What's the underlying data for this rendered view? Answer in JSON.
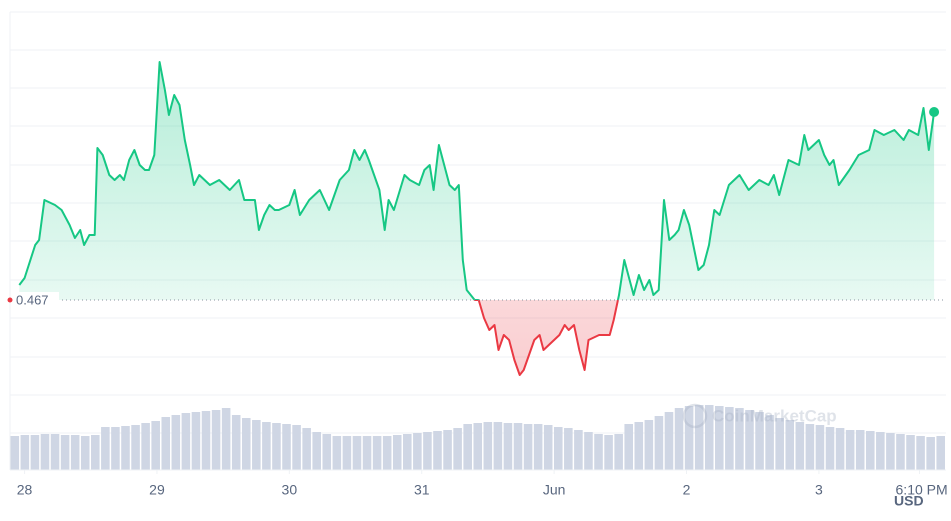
{
  "chart_data": {
    "type": "line",
    "xlim": [
      -0.11,
      6.96
    ],
    "ylim": [
      0.45,
      0.4958
    ],
    "yticks": [
      0.4537,
      0.4575,
      0.4613,
      0.4652,
      0.469,
      0.4729,
      0.4767,
      0.4805,
      0.4844,
      0.4882,
      0.492,
      0.4958
    ],
    "grid": true,
    "xticks": [
      {
        "value": 0,
        "label": "28"
      },
      {
        "value": 1,
        "label": "29"
      },
      {
        "value": 2,
        "label": "30"
      },
      {
        "value": 3,
        "label": "31"
      },
      {
        "value": 4,
        "label": "Jun"
      },
      {
        "value": 5,
        "label": "2"
      },
      {
        "value": 6,
        "label": "3"
      },
      {
        "value": 6.76,
        "label": "6:10 PM"
      }
    ],
    "currency": "USD",
    "baseline": 0.467,
    "up_color": "#16c784",
    "down_color": "#ea3943",
    "watermark": "CoinMarketCap",
    "series": [
      {
        "x": [
          -0.04,
          0,
          0.08,
          0.11,
          0.15,
          0.23,
          0.28,
          0.34,
          0.38,
          0.42,
          0.45,
          0.49,
          0.53,
          0.55,
          0.59,
          0.64,
          0.68,
          0.72,
          0.75,
          0.79,
          0.83,
          0.87,
          0.91,
          0.94,
          0.98,
          1.02,
          1.06,
          1.09,
          1.13,
          1.17,
          1.21,
          1.25,
          1.28,
          1.32,
          1.36,
          1.4,
          1.47,
          1.55,
          1.62,
          1.66,
          1.74,
          1.77,
          1.81,
          1.85,
          1.89,
          1.92,
          2.0,
          2.04,
          2.08,
          2.15,
          2.23,
          2.3,
          2.38,
          2.45,
          2.49,
          2.53,
          2.57,
          2.6,
          2.64,
          2.68,
          2.72,
          2.75,
          2.79,
          2.87,
          2.91,
          2.98,
          3.02,
          3.06,
          3.09,
          3.13,
          3.17,
          3.21,
          3.25,
          3.28,
          3.31,
          3.34,
          3.4,
          3.43,
          3.47,
          3.51,
          3.55,
          3.58,
          3.62,
          3.66,
          3.7,
          3.74,
          3.77,
          3.81,
          3.85,
          3.89,
          3.92,
          3.96,
          4.0,
          4.04,
          4.08,
          4.11,
          4.15,
          4.19,
          4.23,
          4.26,
          4.34,
          4.42,
          4.45,
          4.49,
          4.53,
          4.57,
          4.6,
          4.64,
          4.68,
          4.72,
          4.75,
          4.79,
          4.83,
          4.87,
          4.91,
          4.94,
          4.98,
          5.02,
          5.09,
          5.13,
          5.17,
          5.21,
          5.25,
          5.32,
          5.4,
          5.47,
          5.55,
          5.62,
          5.66,
          5.7,
          5.77,
          5.85,
          5.89,
          5.92,
          6.0,
          6.04,
          6.08,
          6.11,
          6.15,
          6.23,
          6.3,
          6.38,
          6.42,
          6.49,
          6.57,
          6.64,
          6.68,
          6.75,
          6.79,
          6.83,
          6.87
        ],
        "values": [
          0.4685,
          0.4692,
          0.4725,
          0.473,
          0.477,
          0.4765,
          0.476,
          0.4745,
          0.4732,
          0.474,
          0.4725,
          0.4735,
          0.4735,
          0.4822,
          0.4815,
          0.4795,
          0.479,
          0.4795,
          0.479,
          0.481,
          0.482,
          0.4805,
          0.48,
          0.48,
          0.4815,
          0.4908,
          0.488,
          0.4855,
          0.4875,
          0.4865,
          0.483,
          0.4805,
          0.4785,
          0.4795,
          0.479,
          0.4785,
          0.479,
          0.478,
          0.479,
          0.477,
          0.477,
          0.474,
          0.4755,
          0.4765,
          0.476,
          0.476,
          0.4765,
          0.478,
          0.4755,
          0.477,
          0.478,
          0.476,
          0.479,
          0.48,
          0.482,
          0.481,
          0.482,
          0.481,
          0.4795,
          0.478,
          0.474,
          0.477,
          0.476,
          0.4795,
          0.479,
          0.4785,
          0.48,
          0.4805,
          0.478,
          0.4825,
          0.4805,
          0.4785,
          0.478,
          0.4785,
          0.471,
          0.468,
          0.467,
          0.467,
          0.4652,
          0.464,
          0.4645,
          0.462,
          0.4635,
          0.463,
          0.461,
          0.4595,
          0.46,
          0.4615,
          0.463,
          0.4635,
          0.462,
          0.4625,
          0.463,
          0.4635,
          0.4645,
          0.464,
          0.4645,
          0.462,
          0.46,
          0.463,
          0.4635,
          0.4635,
          0.465,
          0.4675,
          0.471,
          0.469,
          0.4675,
          0.4695,
          0.468,
          0.469,
          0.4675,
          0.468,
          0.477,
          0.473,
          0.4735,
          0.474,
          0.476,
          0.4745,
          0.47,
          0.4705,
          0.4725,
          0.476,
          0.4755,
          0.4785,
          0.4795,
          0.478,
          0.479,
          0.4785,
          0.4795,
          0.4775,
          0.481,
          0.4805,
          0.4835,
          0.482,
          0.483,
          0.4815,
          0.4805,
          0.481,
          0.4785,
          0.48,
          0.4815,
          0.482,
          0.484,
          0.4835,
          0.484,
          0.483,
          0.484,
          0.4835,
          0.4862,
          0.482,
          0.4858
        ]
      }
    ],
    "volume": {
      "color": "#cfd6e4",
      "values": [
        34,
        35,
        35,
        36,
        36,
        35,
        35,
        34,
        35,
        43,
        43,
        44,
        45,
        47,
        49,
        53,
        55,
        57,
        58,
        59,
        60,
        62,
        55,
        52,
        50,
        48,
        47,
        46,
        45,
        42,
        38,
        36,
        34,
        34,
        34,
        34,
        34,
        34,
        35,
        36,
        37,
        38,
        39,
        40,
        42,
        46,
        47,
        48,
        48,
        47,
        47,
        46,
        46,
        45,
        43,
        42,
        40,
        38,
        36,
        35,
        36,
        46,
        48,
        50,
        54,
        58,
        62,
        64,
        65,
        65,
        64,
        63,
        62,
        60,
        58,
        55,
        52,
        50,
        48,
        46,
        45,
        43,
        42,
        40,
        40,
        39,
        38,
        37,
        36,
        35,
        34,
        33,
        34
      ]
    }
  }
}
